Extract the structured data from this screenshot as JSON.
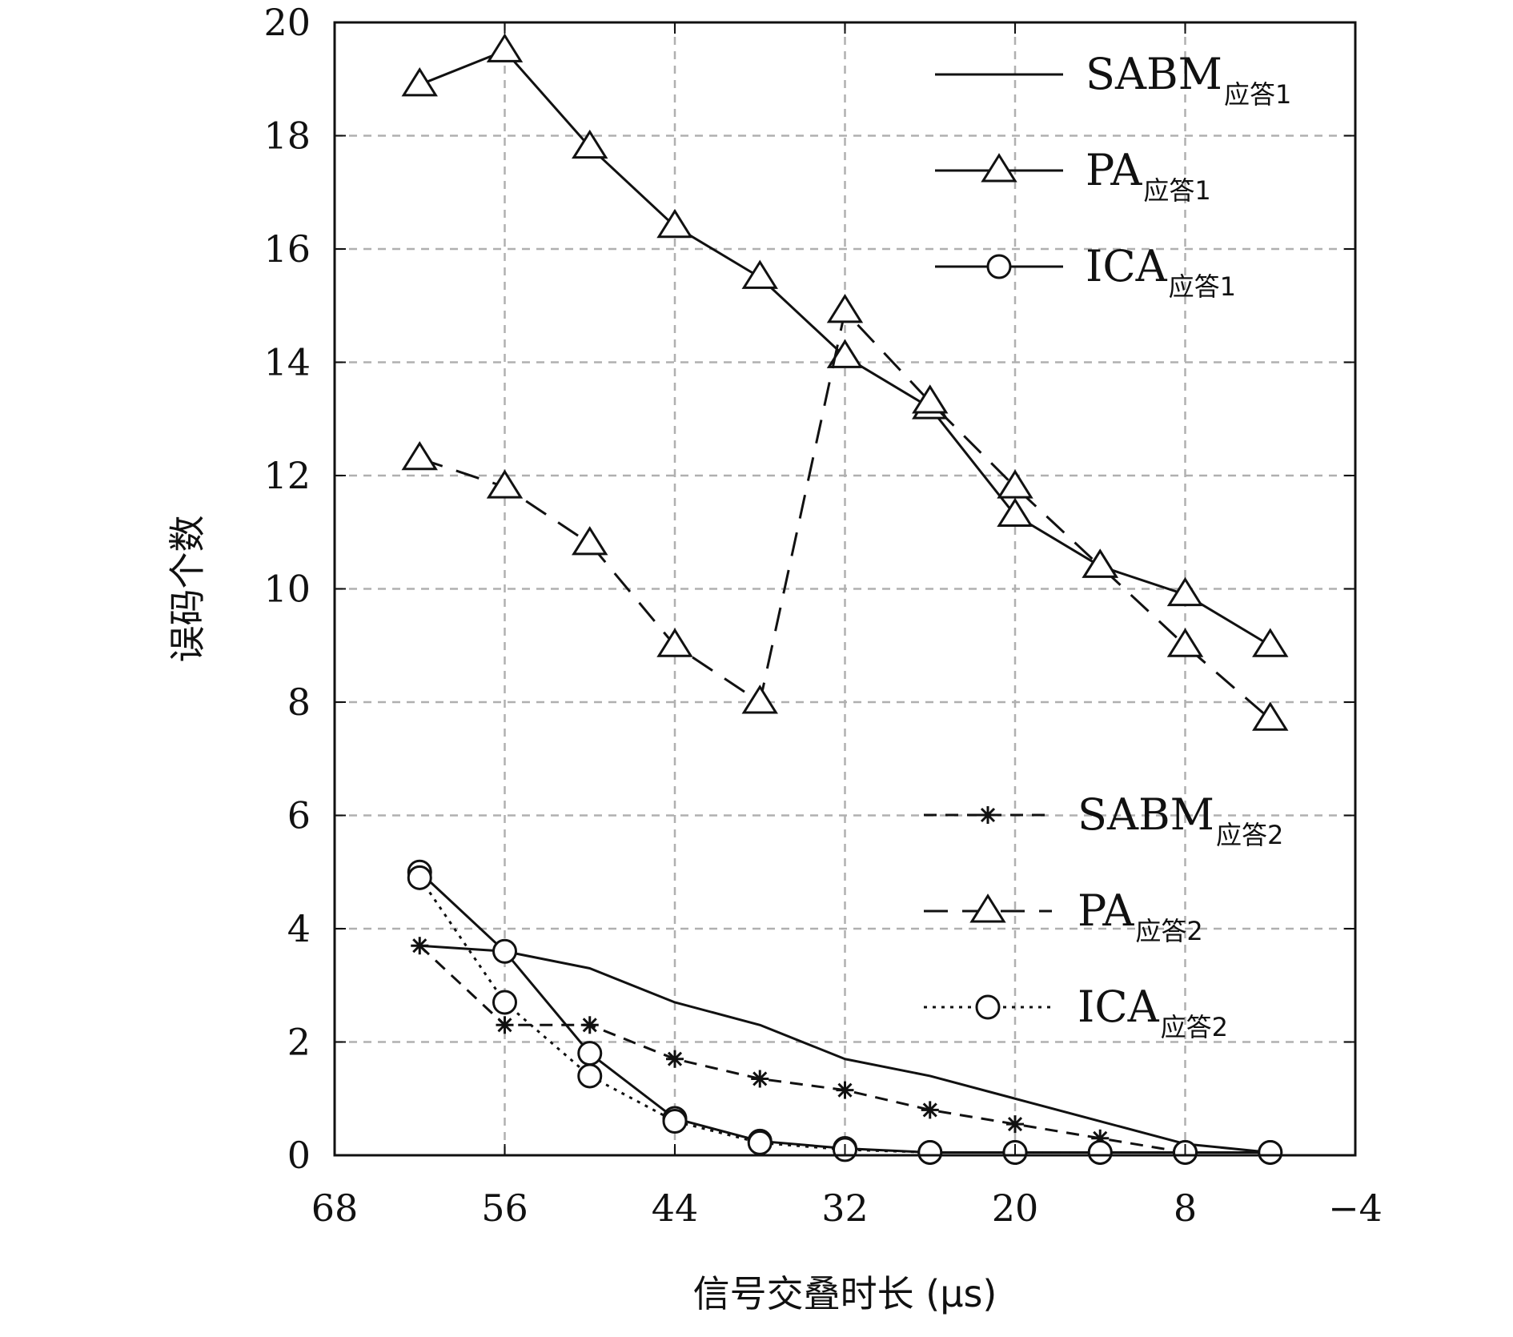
{
  "chart_data": {
    "type": "line",
    "xlabel": "信号交叠时长 (μs)",
    "ylabel": "误码个数",
    "xlim": [
      68,
      -4
    ],
    "ylim": [
      0,
      20
    ],
    "xticks": [
      68,
      56,
      44,
      32,
      20,
      8,
      -4
    ],
    "xtick_labels": [
      "68",
      "56",
      "44",
      "32",
      "20",
      "8",
      "−4"
    ],
    "yticks": [
      0,
      2,
      4,
      6,
      8,
      10,
      12,
      14,
      16,
      18,
      20
    ],
    "grid": true,
    "legend_placement": [
      "top-right",
      "bottom-right"
    ],
    "x": [
      62,
      56,
      50,
      44,
      38,
      32,
      26,
      20,
      14,
      8,
      2
    ],
    "series": [
      {
        "name": "SABM",
        "sub": "应答1",
        "line": "solid",
        "marker": "none",
        "legend": 0,
        "values": [
          3.7,
          3.6,
          3.3,
          2.7,
          2.3,
          1.7,
          1.4,
          1.0,
          0.6,
          0.2,
          0.05
        ]
      },
      {
        "name": "PA",
        "sub": "应答1",
        "line": "solid",
        "marker": "triangle",
        "legend": 0,
        "values": [
          18.9,
          19.5,
          17.8,
          16.4,
          15.5,
          14.1,
          13.2,
          11.3,
          10.4,
          9.9,
          9.0
        ]
      },
      {
        "name": "ICA",
        "sub": "应答1",
        "line": "solid",
        "marker": "circle",
        "legend": 0,
        "values": [
          5.0,
          3.6,
          1.8,
          0.65,
          0.25,
          0.12,
          0.05,
          0.05,
          0.05,
          0.05,
          0.05
        ]
      },
      {
        "name": "SABM",
        "sub": "应答2",
        "line": "shortdash",
        "marker": "star",
        "legend": 1,
        "values": [
          3.7,
          2.3,
          2.3,
          1.7,
          1.35,
          1.15,
          0.8,
          0.55,
          0.3,
          0.05,
          0.05
        ]
      },
      {
        "name": "PA",
        "sub": "应答2",
        "line": "longdash",
        "marker": "triangle",
        "legend": 1,
        "values": [
          12.3,
          11.8,
          10.8,
          9.0,
          8.0,
          14.9,
          13.3,
          11.8,
          10.4,
          9.0,
          7.7
        ]
      },
      {
        "name": "ICA",
        "sub": "应答2",
        "line": "dotted",
        "marker": "circle",
        "legend": 1,
        "values": [
          4.9,
          2.7,
          1.4,
          0.6,
          0.22,
          0.1,
          0.05,
          0.05,
          0.05,
          0.05,
          0.05
        ]
      }
    ]
  }
}
